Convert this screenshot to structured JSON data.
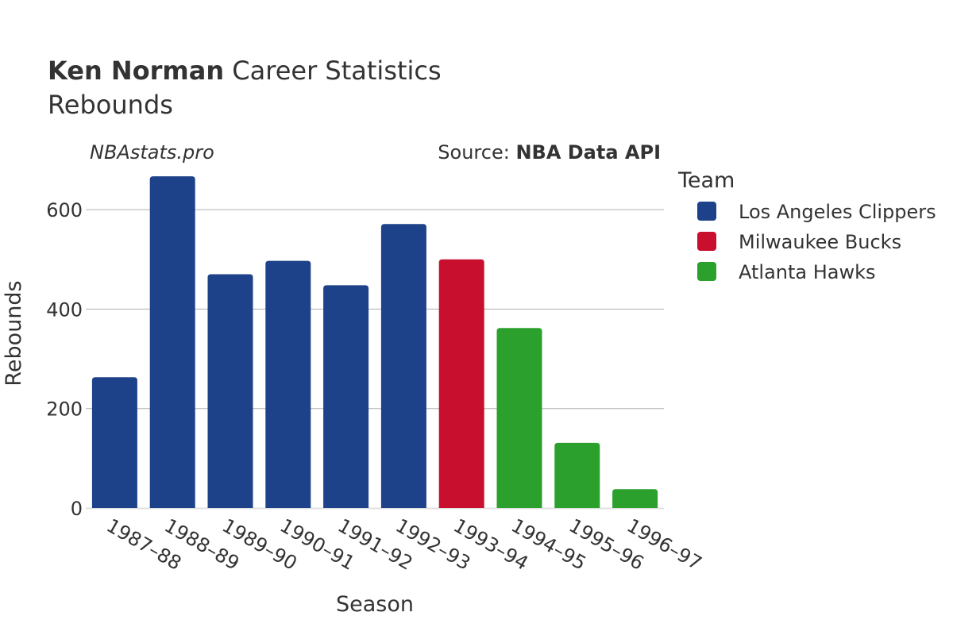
{
  "title": {
    "player": "Ken Norman",
    "rest": " Career Statistics",
    "subtitle": "Rebounds"
  },
  "watermark": "NBAstats.pro",
  "source": {
    "label": "Source: ",
    "name": "NBA Data API"
  },
  "legend_title": "Team",
  "colors": {
    "Los Angeles Clippers": "#1d428a",
    "Milwaukee Bucks": "#c8102e",
    "Atlanta Hawks": "#2ca02c"
  },
  "chart_data": {
    "type": "bar",
    "xlabel": "Season",
    "ylabel": "Rebounds",
    "ylim": [
      0,
      700
    ],
    "yticks": [
      0,
      200,
      400,
      600
    ],
    "grid": true,
    "legend_placement": "right",
    "categories": [
      "1987–88",
      "1988–89",
      "1989–90",
      "1990–91",
      "1991–92",
      "1992–93",
      "1993–94",
      "1994–95",
      "1995–96",
      "1996–97"
    ],
    "series": [
      {
        "name": "Los Angeles Clippers",
        "values": [
          263,
          667,
          470,
          497,
          448,
          571,
          null,
          null,
          null,
          null
        ]
      },
      {
        "name": "Milwaukee Bucks",
        "values": [
          null,
          null,
          null,
          null,
          null,
          null,
          500,
          null,
          null,
          null
        ]
      },
      {
        "name": "Atlanta Hawks",
        "values": [
          null,
          null,
          null,
          null,
          null,
          null,
          null,
          362,
          131,
          38
        ]
      }
    ]
  }
}
